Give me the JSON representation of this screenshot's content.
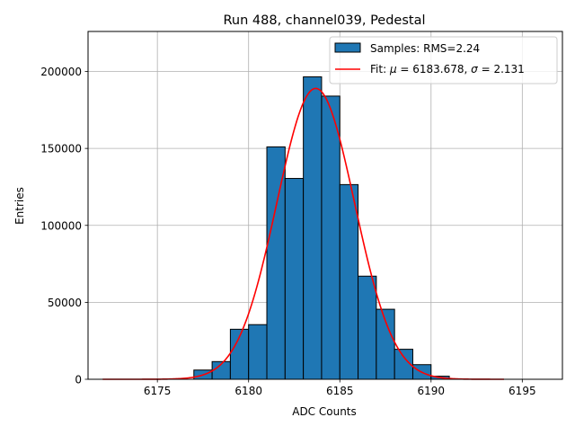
{
  "chart_data": {
    "type": "bar",
    "title": "Run 488, channel039, Pedestal",
    "xlabel": "ADC Counts",
    "ylabel": "Entries",
    "xlim": [
      6171.2,
      6197.2
    ],
    "ylim": [
      0,
      226000
    ],
    "x_ticks": [
      6175,
      6180,
      6185,
      6190,
      6195
    ],
    "y_ticks": [
      0,
      50000,
      100000,
      150000,
      200000
    ],
    "grid": true,
    "legend_position": "top-right",
    "histogram": {
      "name": "Samples: RMS=2.24",
      "bin_width": 1,
      "bin_left_edges": [
        6177,
        6178,
        6179,
        6180,
        6181,
        6182,
        6183,
        6184,
        6185,
        6186,
        6187,
        6188,
        6189,
        6190
      ],
      "values": [
        6000,
        11500,
        32500,
        35500,
        151000,
        130500,
        196500,
        184000,
        126500,
        67000,
        45500,
        19500,
        9500,
        2000
      ],
      "fill_color": "#1f77b4",
      "edge_color": "#000000"
    },
    "fit": {
      "name_prefix": "Fit: ",
      "mu_symbol": "μ",
      "mu_value": " = 6183.678, ",
      "sigma_symbol": "σ",
      "sigma_value": " = 2.131",
      "mu": 6183.678,
      "sigma": 2.131,
      "amplitude": 189000,
      "x_range": [
        6172,
        6194
      ],
      "color": "#ff0000"
    }
  }
}
